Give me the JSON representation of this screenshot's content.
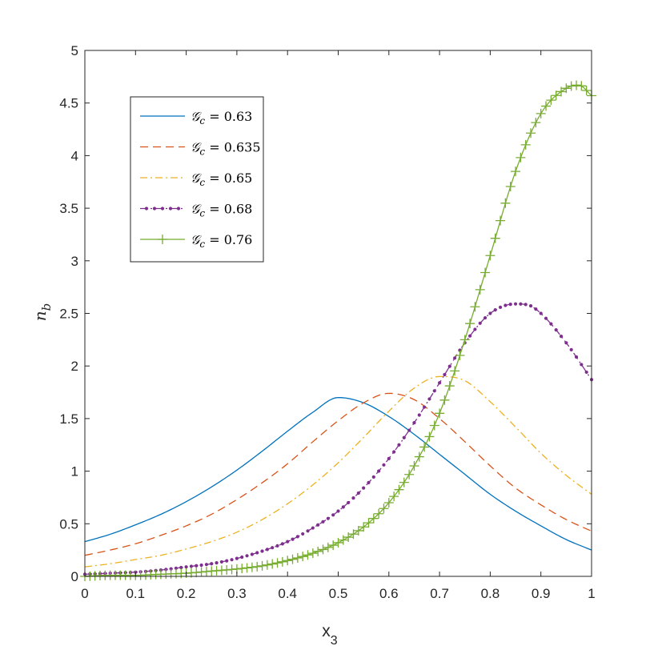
{
  "chart_data": {
    "type": "line",
    "title": "",
    "xlabel": "x",
    "xlabel_subscript": "3",
    "ylabel": "n",
    "ylabel_subscript": "b",
    "xlim": [
      0,
      1
    ],
    "ylim": [
      0,
      5
    ],
    "xticks": [
      0,
      0.1,
      0.2,
      0.3,
      0.4,
      0.5,
      0.6,
      0.7,
      0.8,
      0.9,
      1
    ],
    "xtick_labels": [
      "0",
      "0.1",
      "0.2",
      "0.3",
      "0.4",
      "0.5",
      "0.6",
      "0.7",
      "0.8",
      "0.9",
      "1"
    ],
    "yticks": [
      0,
      0.5,
      1,
      1.5,
      2,
      2.5,
      3,
      3.5,
      4,
      4.5,
      5
    ],
    "ytick_labels": [
      "0",
      "0.5",
      "1",
      "1.5",
      "2",
      "2.5",
      "3",
      "3.5",
      "4",
      "4.5",
      "5"
    ],
    "grid": false,
    "legend_position": "top-left",
    "series": [
      {
        "name": "𝒢c = 0.63",
        "legend_label": "𝒢",
        "legend_sub": "c",
        "legend_value": " = 0.63",
        "color": "#0072BD",
        "style": "solid",
        "marker": "none",
        "x": [
          0,
          0.05,
          0.1,
          0.15,
          0.2,
          0.25,
          0.3,
          0.35,
          0.4,
          0.45,
          0.5,
          0.55,
          0.6,
          0.65,
          0.7,
          0.75,
          0.8,
          0.85,
          0.9,
          0.95,
          1
        ],
        "y": [
          0.33,
          0.4,
          0.49,
          0.59,
          0.71,
          0.85,
          1.01,
          1.19,
          1.38,
          1.56,
          1.7,
          1.65,
          1.52,
          1.35,
          1.16,
          0.97,
          0.78,
          0.62,
          0.48,
          0.35,
          0.25
        ]
      },
      {
        "name": "𝒢c = 0.635",
        "legend_label": "𝒢",
        "legend_sub": "c",
        "legend_value": " = 0.635",
        "color": "#D95319",
        "style": "dashed",
        "marker": "none",
        "x": [
          0,
          0.05,
          0.1,
          0.15,
          0.2,
          0.25,
          0.3,
          0.35,
          0.4,
          0.45,
          0.5,
          0.55,
          0.6,
          0.65,
          0.7,
          0.75,
          0.8,
          0.85,
          0.9,
          0.95,
          1
        ],
        "y": [
          0.2,
          0.25,
          0.31,
          0.39,
          0.48,
          0.59,
          0.73,
          0.89,
          1.07,
          1.28,
          1.48,
          1.65,
          1.74,
          1.68,
          1.5,
          1.28,
          1.05,
          0.84,
          0.68,
          0.54,
          0.43
        ]
      },
      {
        "name": "𝒢c = 0.65",
        "legend_label": "𝒢",
        "legend_sub": "c",
        "legend_value": " = 0.65",
        "color": "#EDB120",
        "style": "dashdot",
        "marker": "none",
        "x": [
          0,
          0.05,
          0.1,
          0.15,
          0.2,
          0.25,
          0.3,
          0.35,
          0.4,
          0.45,
          0.5,
          0.55,
          0.6,
          0.65,
          0.7,
          0.75,
          0.8,
          0.85,
          0.9,
          0.95,
          1
        ],
        "y": [
          0.09,
          0.12,
          0.16,
          0.2,
          0.26,
          0.33,
          0.42,
          0.54,
          0.69,
          0.87,
          1.08,
          1.32,
          1.57,
          1.79,
          1.9,
          1.86,
          1.66,
          1.42,
          1.17,
          0.96,
          0.78
        ]
      },
      {
        "name": "𝒢c = 0.68",
        "legend_label": "𝒢",
        "legend_sub": "c",
        "legend_value": " = 0.68",
        "color": "#7E2F8E",
        "style": "dashdot",
        "marker": "dot",
        "x": [
          0,
          0.05,
          0.1,
          0.15,
          0.2,
          0.25,
          0.3,
          0.35,
          0.4,
          0.45,
          0.5,
          0.55,
          0.6,
          0.65,
          0.7,
          0.75,
          0.8,
          0.85,
          0.875,
          0.9,
          0.95,
          1
        ],
        "y": [
          0.02,
          0.03,
          0.04,
          0.06,
          0.09,
          0.12,
          0.17,
          0.24,
          0.33,
          0.46,
          0.62,
          0.84,
          1.12,
          1.46,
          1.84,
          2.22,
          2.5,
          2.59,
          2.58,
          2.5,
          2.22,
          1.87
        ]
      },
      {
        "name": "𝒢c = 0.76",
        "legend_label": "𝒢",
        "legend_sub": "c",
        "legend_value": " = 0.76",
        "color": "#77AC30",
        "style": "solid",
        "marker": "plus",
        "x": [
          0,
          0.05,
          0.1,
          0.15,
          0.2,
          0.25,
          0.3,
          0.35,
          0.4,
          0.45,
          0.5,
          0.55,
          0.6,
          0.65,
          0.7,
          0.75,
          0.8,
          0.85,
          0.9,
          0.95,
          0.975,
          1
        ],
        "y": [
          0.0,
          0.01,
          0.01,
          0.02,
          0.03,
          0.05,
          0.07,
          0.1,
          0.15,
          0.22,
          0.32,
          0.47,
          0.7,
          1.05,
          1.55,
          2.25,
          3.05,
          3.85,
          4.4,
          4.64,
          4.67,
          4.57
        ]
      }
    ]
  }
}
